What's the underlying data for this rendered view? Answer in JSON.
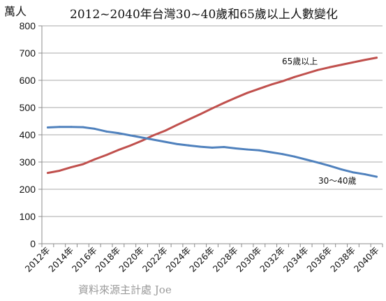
{
  "chart_data": {
    "type": "line",
    "title": "2012~2040年台灣30~40歲和65歲以上人數變化",
    "ylabel": "萬人",
    "xlabel": "",
    "ylim": [
      0,
      800
    ],
    "yticks": [
      0,
      100,
      200,
      300,
      400,
      500,
      600,
      700,
      800
    ],
    "x": [
      2012,
      2013,
      2014,
      2015,
      2016,
      2017,
      2018,
      2019,
      2020,
      2021,
      2022,
      2023,
      2024,
      2025,
      2026,
      2027,
      2028,
      2029,
      2030,
      2031,
      2032,
      2033,
      2034,
      2035,
      2036,
      2037,
      2038,
      2039,
      2040
    ],
    "x_tick_labels": [
      "2012年",
      "2014年",
      "2016年",
      "2018年",
      "2020年",
      "2022年",
      "2024年",
      "2026年",
      "2028年",
      "2030年",
      "2032年",
      "2034年",
      "2036年",
      "2038年",
      "2040年"
    ],
    "grid": true,
    "legend": "inline-labels",
    "series": [
      {
        "name": "65歲以上",
        "color": "#c0504d",
        "values": [
          260,
          268,
          281,
          292,
          310,
          326,
          344,
          360,
          378,
          398,
          415,
          436,
          456,
          476,
          497,
          517,
          536,
          554,
          569,
          584,
          597,
          612,
          625,
          638,
          648,
          657,
          666,
          675,
          683
        ]
      },
      {
        "name": "30～40歲",
        "color": "#4f81bd",
        "values": [
          427,
          429,
          429,
          428,
          422,
          412,
          406,
          398,
          390,
          382,
          374,
          366,
          361,
          356,
          353,
          355,
          350,
          346,
          343,
          336,
          329,
          320,
          309,
          298,
          286,
          273,
          262,
          255,
          246
        ]
      }
    ],
    "watermark": "資料來源主計處  Joe"
  }
}
